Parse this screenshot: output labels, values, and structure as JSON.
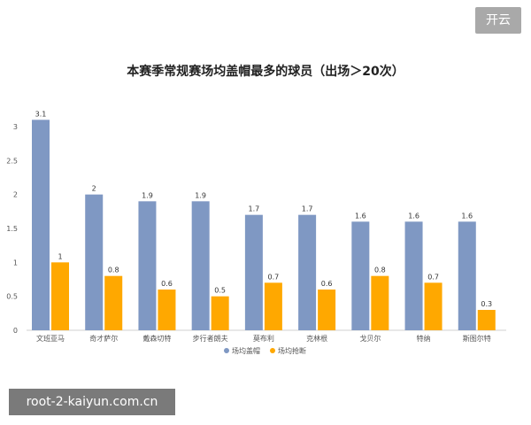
{
  "badge": {
    "label": "开云"
  },
  "watermark": {
    "text": "root-2-kaiyun.com.cn"
  },
  "colors": {
    "blocks": "#7f98c3",
    "steals": "#ffa800",
    "axis_text": "#555555",
    "grid": "#e6e6e6"
  },
  "chart_data": {
    "type": "bar",
    "title": "本赛季常规赛场均盖帽最多的球员（出场＞20次）",
    "categories": [
      "文班亚马",
      "奇才萨尔",
      "戴森切特",
      "步行者朗夫",
      "莫布利",
      "克林根",
      "戈贝尔",
      "特纳",
      "斯图尔特"
    ],
    "series": [
      {
        "name": "场均盖帽",
        "values": [
          3.1,
          2,
          1.9,
          1.9,
          1.7,
          1.7,
          1.6,
          1.6,
          1.6
        ]
      },
      {
        "name": "场均抢断",
        "values": [
          1,
          0.8,
          0.6,
          0.5,
          0.7,
          0.6,
          0.8,
          0.7,
          0.3
        ]
      }
    ],
    "y_ticks": [
      "0",
      "0.5",
      "1",
      "1.5",
      "2",
      "2.5",
      "3"
    ],
    "ylim": [
      0,
      3
    ],
    "legend_position": "bottom-center",
    "grid": false
  }
}
